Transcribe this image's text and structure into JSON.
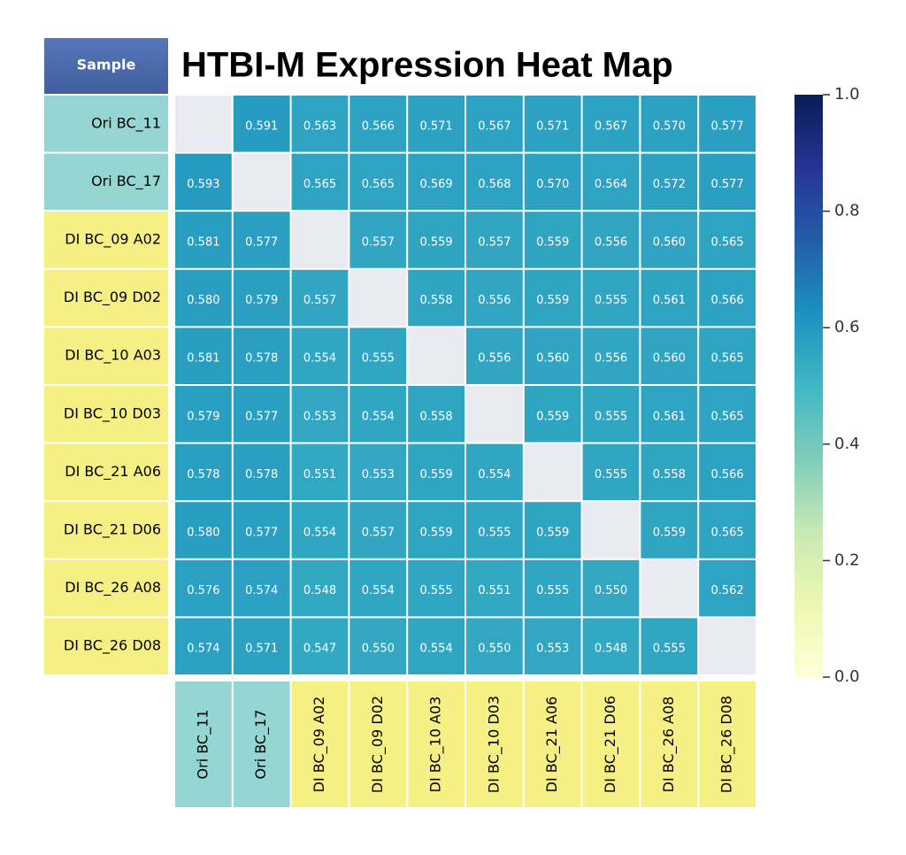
{
  "chart_data": {
    "type": "heatmap",
    "title": "HTBI-M Expression Heat Map",
    "corner_label": "Sample",
    "rows": [
      "Ori BC_11",
      "Ori BC_17",
      "DI BC_09 A02",
      "DI BC_09 D02",
      "DI BC_10 A03",
      "DI BC_10 D03",
      "DI BC_21 A06",
      "DI BC_21 D06",
      "DI BC_26 A08",
      "DI BC_26 D08"
    ],
    "columns": [
      "Ori BC_11",
      "Ori BC_17",
      "DI BC_09 A02",
      "DI BC_09 D02",
      "DI BC_10 A03",
      "DI BC_10 D03",
      "DI BC_21 A06",
      "DI BC_21 D06",
      "DI BC_26 A08",
      "DI BC_26 D08"
    ],
    "label_colors": [
      "#95d6d2",
      "#95d6d2",
      "#f6ef84",
      "#f6ef84",
      "#f6ef84",
      "#f6ef84",
      "#f6ef84",
      "#f6ef84",
      "#f6ef84",
      "#f6ef84"
    ],
    "values": [
      [
        null,
        0.591,
        0.563,
        0.566,
        0.571,
        0.567,
        0.571,
        0.567,
        0.57,
        0.577
      ],
      [
        0.593,
        null,
        0.565,
        0.565,
        0.569,
        0.568,
        0.57,
        0.564,
        0.572,
        0.577
      ],
      [
        0.581,
        0.577,
        null,
        0.557,
        0.559,
        0.557,
        0.559,
        0.556,
        0.56,
        0.565
      ],
      [
        0.58,
        0.579,
        0.557,
        null,
        0.558,
        0.556,
        0.559,
        0.555,
        0.561,
        0.566
      ],
      [
        0.581,
        0.578,
        0.554,
        0.555,
        null,
        0.556,
        0.56,
        0.556,
        0.56,
        0.565
      ],
      [
        0.579,
        0.577,
        0.553,
        0.554,
        0.558,
        null,
        0.559,
        0.555,
        0.561,
        0.565
      ],
      [
        0.578,
        0.578,
        0.551,
        0.553,
        0.559,
        0.554,
        null,
        0.555,
        0.558,
        0.566
      ],
      [
        0.58,
        0.577,
        0.554,
        0.557,
        0.559,
        0.555,
        0.559,
        null,
        0.559,
        0.565
      ],
      [
        0.576,
        0.574,
        0.548,
        0.554,
        0.555,
        0.551,
        0.555,
        0.55,
        null,
        0.562
      ],
      [
        0.574,
        0.571,
        0.547,
        0.55,
        0.554,
        0.55,
        0.553,
        0.548,
        0.555,
        null
      ]
    ],
    "value_labels": [
      [
        null,
        "0.591",
        "0.563",
        "0.566",
        "0.571",
        "0.567",
        "0.571",
        "0.567",
        "0.570",
        "0.577"
      ],
      [
        "0.593",
        null,
        "0.565",
        "0.565",
        "0.569",
        "0.568",
        "0.570",
        "0.564",
        "0.572",
        "0.577"
      ],
      [
        "0.581",
        "0.577",
        null,
        "0.557",
        "0.559",
        "0.557",
        "0.559",
        "0.556",
        "0.560",
        "0.565"
      ],
      [
        "0.580",
        "0.579",
        "0.557",
        null,
        "0.558",
        "0.556",
        "0.559",
        "0.555",
        "0.561",
        "0.566"
      ],
      [
        "0.581",
        "0.578",
        "0.554",
        "0.555",
        null,
        "0.556",
        "0.560",
        "0.556",
        "0.560",
        "0.565"
      ],
      [
        "0.579",
        "0.577",
        "0.553",
        "0.554",
        "0.558",
        null,
        "0.559",
        "0.555",
        "0.561",
        "0.565"
      ],
      [
        "0.578",
        "0.578",
        "0.551",
        "0.553",
        "0.559",
        "0.554",
        null,
        "0.555",
        "0.558",
        "0.566"
      ],
      [
        "0.580",
        "0.577",
        "0.554",
        "0.557",
        "0.559",
        "0.555",
        "0.559",
        null,
        "0.559",
        "0.565"
      ],
      [
        "0.576",
        "0.574",
        "0.548",
        "0.554",
        "0.555",
        "0.551",
        "0.555",
        "0.550",
        null,
        "0.562"
      ],
      [
        "0.574",
        "0.571",
        "0.547",
        "0.550",
        "0.554",
        "0.550",
        "0.553",
        "0.548",
        "0.555",
        null
      ]
    ],
    "colormap": "YlGnBu",
    "clim": [
      0,
      1
    ],
    "cticks": [
      {
        "value": 0,
        "label": "0.0"
      },
      0.2,
      0.4,
      0.6,
      0.8,
      {
        "value": 1,
        "label": "1.0"
      }
    ]
  }
}
